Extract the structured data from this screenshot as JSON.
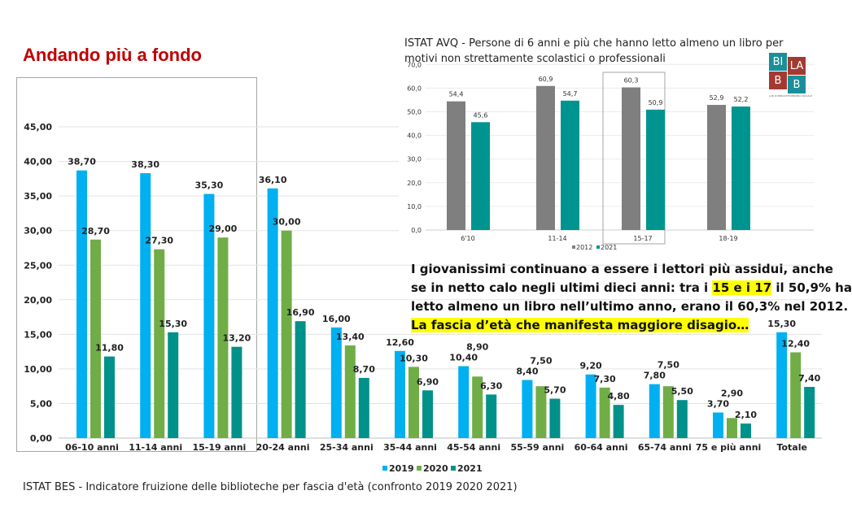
{
  "slide_title": "Andando più a fondo",
  "footer": "ISTAT BES - Indicatore fruizione delle biblioteche per fascia d'età (confronto 2019 2020 2021)",
  "logo": {
    "letters": [
      "BI",
      "LA",
      "B",
      "B"
    ],
    "subtitle": "LAB DI BIBLIOTECONOMIA SOCIALE E APPLICATA ALLE BIBLIOTECHE"
  },
  "paragraph": {
    "line1": "I giovanissimi continuano a essere i lettori più assidui, anche",
    "line2_a": "se in netto calo negli ultimi dieci anni: tra i ",
    "line2_hl": "15 e i 17",
    "line2_b": " il 50,9% ha",
    "line3": "letto almeno un libro nell’ultimo anno, erano il 60,3% nel 2012.",
    "line4_hl": "La fascia d’età che manifesta maggiore disagio…"
  },
  "chart_data": [
    {
      "type": "bar",
      "title": "",
      "categories": [
        "06-10 anni",
        "11-14 anni",
        "15-19 anni",
        "20-24 anni",
        "25-34 anni",
        "35-44 anni",
        "45-54 anni",
        "55-59 anni",
        "60-64 anni",
        "65-74 anni",
        "75 e più anni",
        "Totale"
      ],
      "series": [
        {
          "name": "2019",
          "color": "#00b0f0",
          "values": [
            38.7,
            38.3,
            35.3,
            36.1,
            16.0,
            12.6,
            10.4,
            8.4,
            9.2,
            7.8,
            3.7,
            15.3
          ]
        },
        {
          "name": "2020",
          "color": "#70ad47",
          "values": [
            28.7,
            27.3,
            29.0,
            30.0,
            13.4,
            10.3,
            8.9,
            7.5,
            7.3,
            7.5,
            2.9,
            12.4
          ]
        },
        {
          "name": "2021",
          "color": "#00918a",
          "values": [
            11.8,
            15.3,
            13.2,
            16.9,
            8.7,
            6.9,
            6.3,
            5.7,
            4.8,
            5.5,
            2.1,
            7.4
          ]
        }
      ],
      "ylim": [
        0,
        45
      ],
      "yticks": [
        "0,00",
        "5,00",
        "10,00",
        "15,00",
        "20,00",
        "25,00",
        "30,00",
        "35,00",
        "40,00",
        "45,00"
      ],
      "grid": true,
      "legend": "bottom",
      "highlight_box_categories": [
        "06-10 anni",
        "11-14 anni",
        "15-19 anni"
      ]
    },
    {
      "type": "bar",
      "title": "ISTAT AVQ - Persone di 6 anni e più che hanno letto almeno un libro per motivi non strettamente scolastici o professionali",
      "categories": [
        "6'10",
        "11-14",
        "15-17",
        "18-19"
      ],
      "series": [
        {
          "name": "2012",
          "color": "#7f7f7f",
          "values": [
            54.4,
            60.9,
            60.3,
            52.9
          ]
        },
        {
          "name": "2021",
          "color": "#009490",
          "values": [
            45.6,
            54.7,
            50.9,
            52.2
          ]
        }
      ],
      "ylim": [
        0,
        70
      ],
      "yticks": [
        "0,0",
        "10,0",
        "20,0",
        "30,0",
        "40,0",
        "50,0",
        "60,0",
        "70,0"
      ],
      "grid": true,
      "legend": "bottom",
      "highlight_box_categories": [
        "15-17"
      ]
    }
  ]
}
